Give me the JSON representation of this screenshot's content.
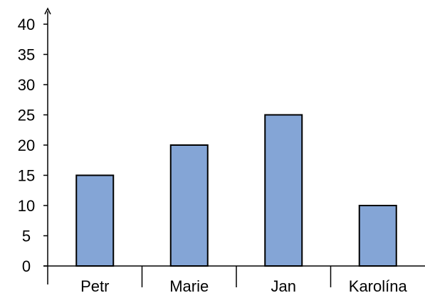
{
  "chart_data": {
    "type": "bar",
    "title": "",
    "xlabel": "",
    "ylabel": "",
    "categories": [
      "Petr",
      "Marie",
      "Jan",
      "Karolína"
    ],
    "values": [
      15,
      20,
      25,
      10
    ],
    "ylim": [
      0,
      40
    ],
    "yticks": [
      0,
      5,
      10,
      15,
      20,
      25,
      30,
      35,
      40
    ],
    "grid": false,
    "legend": "none",
    "bar_color": "#84a5d6",
    "bar_edge_color": "#000000",
    "axis_color": "#000000"
  }
}
